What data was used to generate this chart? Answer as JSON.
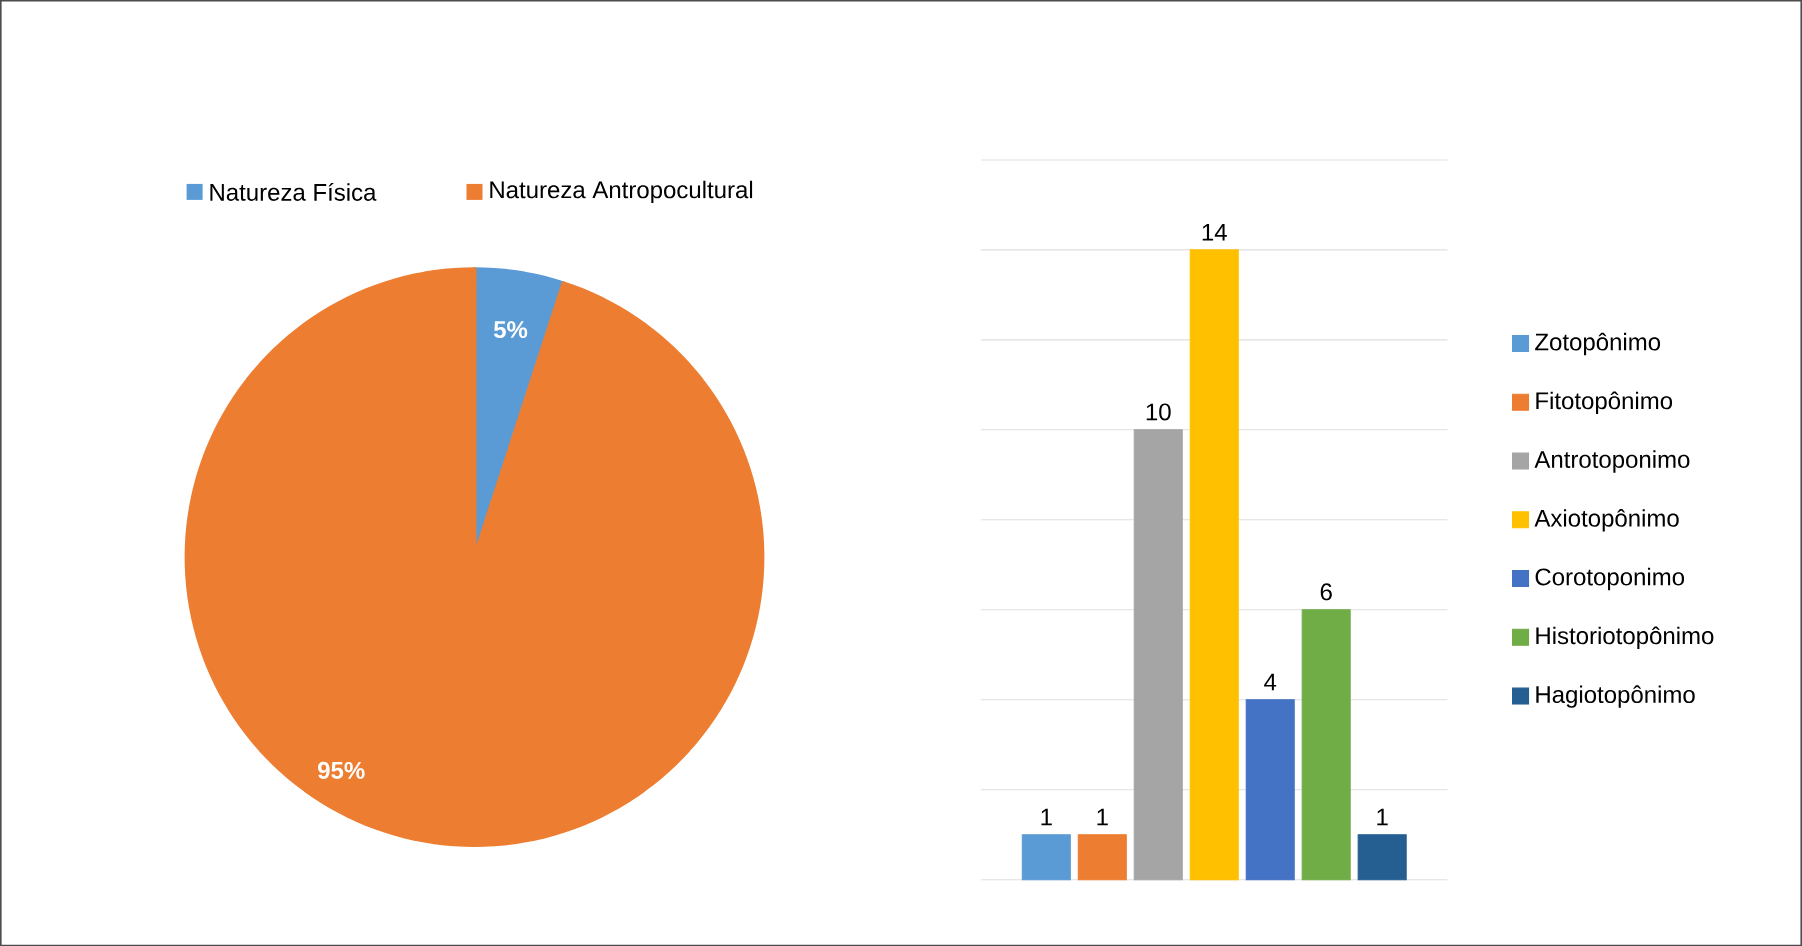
{
  "chart_data": [
    {
      "type": "pie",
      "categories": [
        "Natureza Física",
        "Natureza Antropocultural"
      ],
      "values": [
        5,
        95
      ],
      "colors": [
        "#5b9bd5",
        "#ed7d31"
      ],
      "value_labels": [
        "5%",
        "95%"
      ],
      "legend": "top"
    },
    {
      "type": "bar",
      "categories": [
        null
      ],
      "series": [
        {
          "name": "Zotopônimo",
          "color": "#5b9bd5",
          "values": [
            1
          ]
        },
        {
          "name": "Fitotopônimo",
          "color": "#ed7d31",
          "values": [
            1
          ]
        },
        {
          "name": "Antrotoponimo",
          "color": "#a5a5a5",
          "values": [
            10
          ]
        },
        {
          "name": "Axiotopônimo",
          "color": "#ffc000",
          "values": [
            14
          ]
        },
        {
          "name": "Corotoponimo",
          "color": "#4472c4",
          "values": [
            4
          ]
        },
        {
          "name": "Historiotopônimo",
          "color": "#70ad47",
          "values": [
            6
          ]
        },
        {
          "name": "Hagiotopônimo",
          "color": "#255e91",
          "values": [
            1
          ]
        }
      ],
      "data_labels": true,
      "legend": "right",
      "ylim": [
        0,
        16
      ],
      "yticks": [
        {
          "value": 0,
          "label": null
        },
        {
          "value": 2,
          "label": null
        },
        {
          "value": 4,
          "label": null
        },
        {
          "value": 6,
          "label": null
        },
        {
          "value": 8,
          "label": null
        },
        {
          "value": 10,
          "label": null
        },
        {
          "value": 12,
          "label": null
        },
        {
          "value": 14,
          "label": null
        },
        {
          "value": 16,
          "label": null
        }
      ],
      "grid": "y"
    }
  ]
}
